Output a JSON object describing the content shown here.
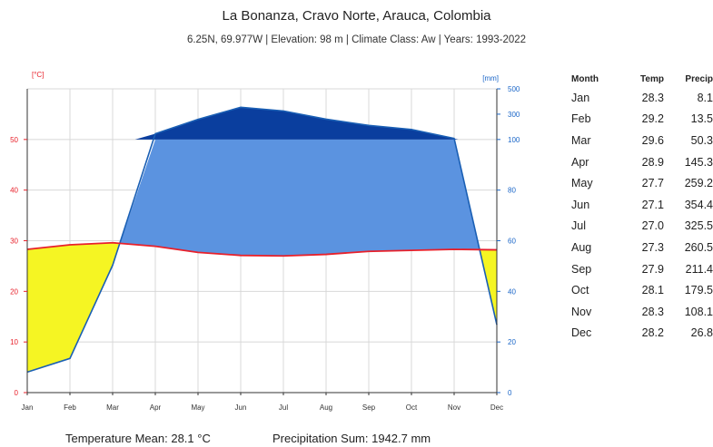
{
  "title": "La Bonanza, Cravo Norte, Arauca, Colombia",
  "subtitle": "6.25N, 69.977W | Elevation: 98 m | Climate Class: Aw | Years: 1993-2022",
  "footer": {
    "temperature_mean": "Temperature Mean: 28.1 °C",
    "precipitation_sum": "Precipitation Sum: 1942.7 mm"
  },
  "table": {
    "headers": {
      "month": "Month",
      "temp": "Temp",
      "precip": "Precip"
    },
    "rows": [
      {
        "month": "Jan",
        "temp": "28.3",
        "precip": "8.1"
      },
      {
        "month": "Feb",
        "temp": "29.2",
        "precip": "13.5"
      },
      {
        "month": "Mar",
        "temp": "29.6",
        "precip": "50.3"
      },
      {
        "month": "Apr",
        "temp": "28.9",
        "precip": "145.3"
      },
      {
        "month": "May",
        "temp": "27.7",
        "precip": "259.2"
      },
      {
        "month": "Jun",
        "temp": "27.1",
        "precip": "354.4"
      },
      {
        "month": "Jul",
        "temp": "27.0",
        "precip": "325.5"
      },
      {
        "month": "Aug",
        "temp": "27.3",
        "precip": "260.5"
      },
      {
        "month": "Sep",
        "temp": "27.9",
        "precip": "211.4"
      },
      {
        "month": "Oct",
        "temp": "28.1",
        "precip": "179.5"
      },
      {
        "month": "Nov",
        "temp": "28.3",
        "precip": "108.1"
      },
      {
        "month": "Dec",
        "temp": "28.2",
        "precip": "26.8"
      }
    ]
  },
  "colors": {
    "temperature_line": "#e8202a",
    "precipitation_line": "#1a5fb4",
    "arid_fill": "#f5f523",
    "humid_fill": "#5b93e0",
    "perhumid_fill": "#0a3e9e",
    "left_axis": "#e8202a",
    "right_axis": "#1a66c8",
    "grid": "#d8d8d8"
  },
  "chart_data": {
    "type": "area",
    "categories": [
      "Jan",
      "Feb",
      "Mar",
      "Apr",
      "May",
      "Jun",
      "Jul",
      "Aug",
      "Sep",
      "Oct",
      "Nov",
      "Dec"
    ],
    "series": [
      {
        "values": [
          28.3,
          29.2,
          29.6,
          28.9,
          27.7,
          27.1,
          27.0,
          27.3,
          27.9,
          28.1,
          28.3,
          28.2
        ]
      },
      {
        "values": [
          8.1,
          13.5,
          50.3,
          145.3,
          259.2,
          354.4,
          325.5,
          260.5,
          211.4,
          179.5,
          108.1,
          26.8
        ]
      }
    ],
    "left_axis_unit": "[°C]",
    "right_axis_unit": "[mm]",
    "left_ticks": [
      0,
      10,
      20,
      30,
      40,
      50
    ],
    "right_ticks": [
      0,
      20,
      40,
      60,
      80,
      100,
      300,
      500
    ],
    "left_ylim": [
      0,
      60
    ],
    "right_ylim_linear": [
      0,
      100
    ],
    "right_ylim_compressed": [
      100,
      500
    ],
    "grid": true
  }
}
